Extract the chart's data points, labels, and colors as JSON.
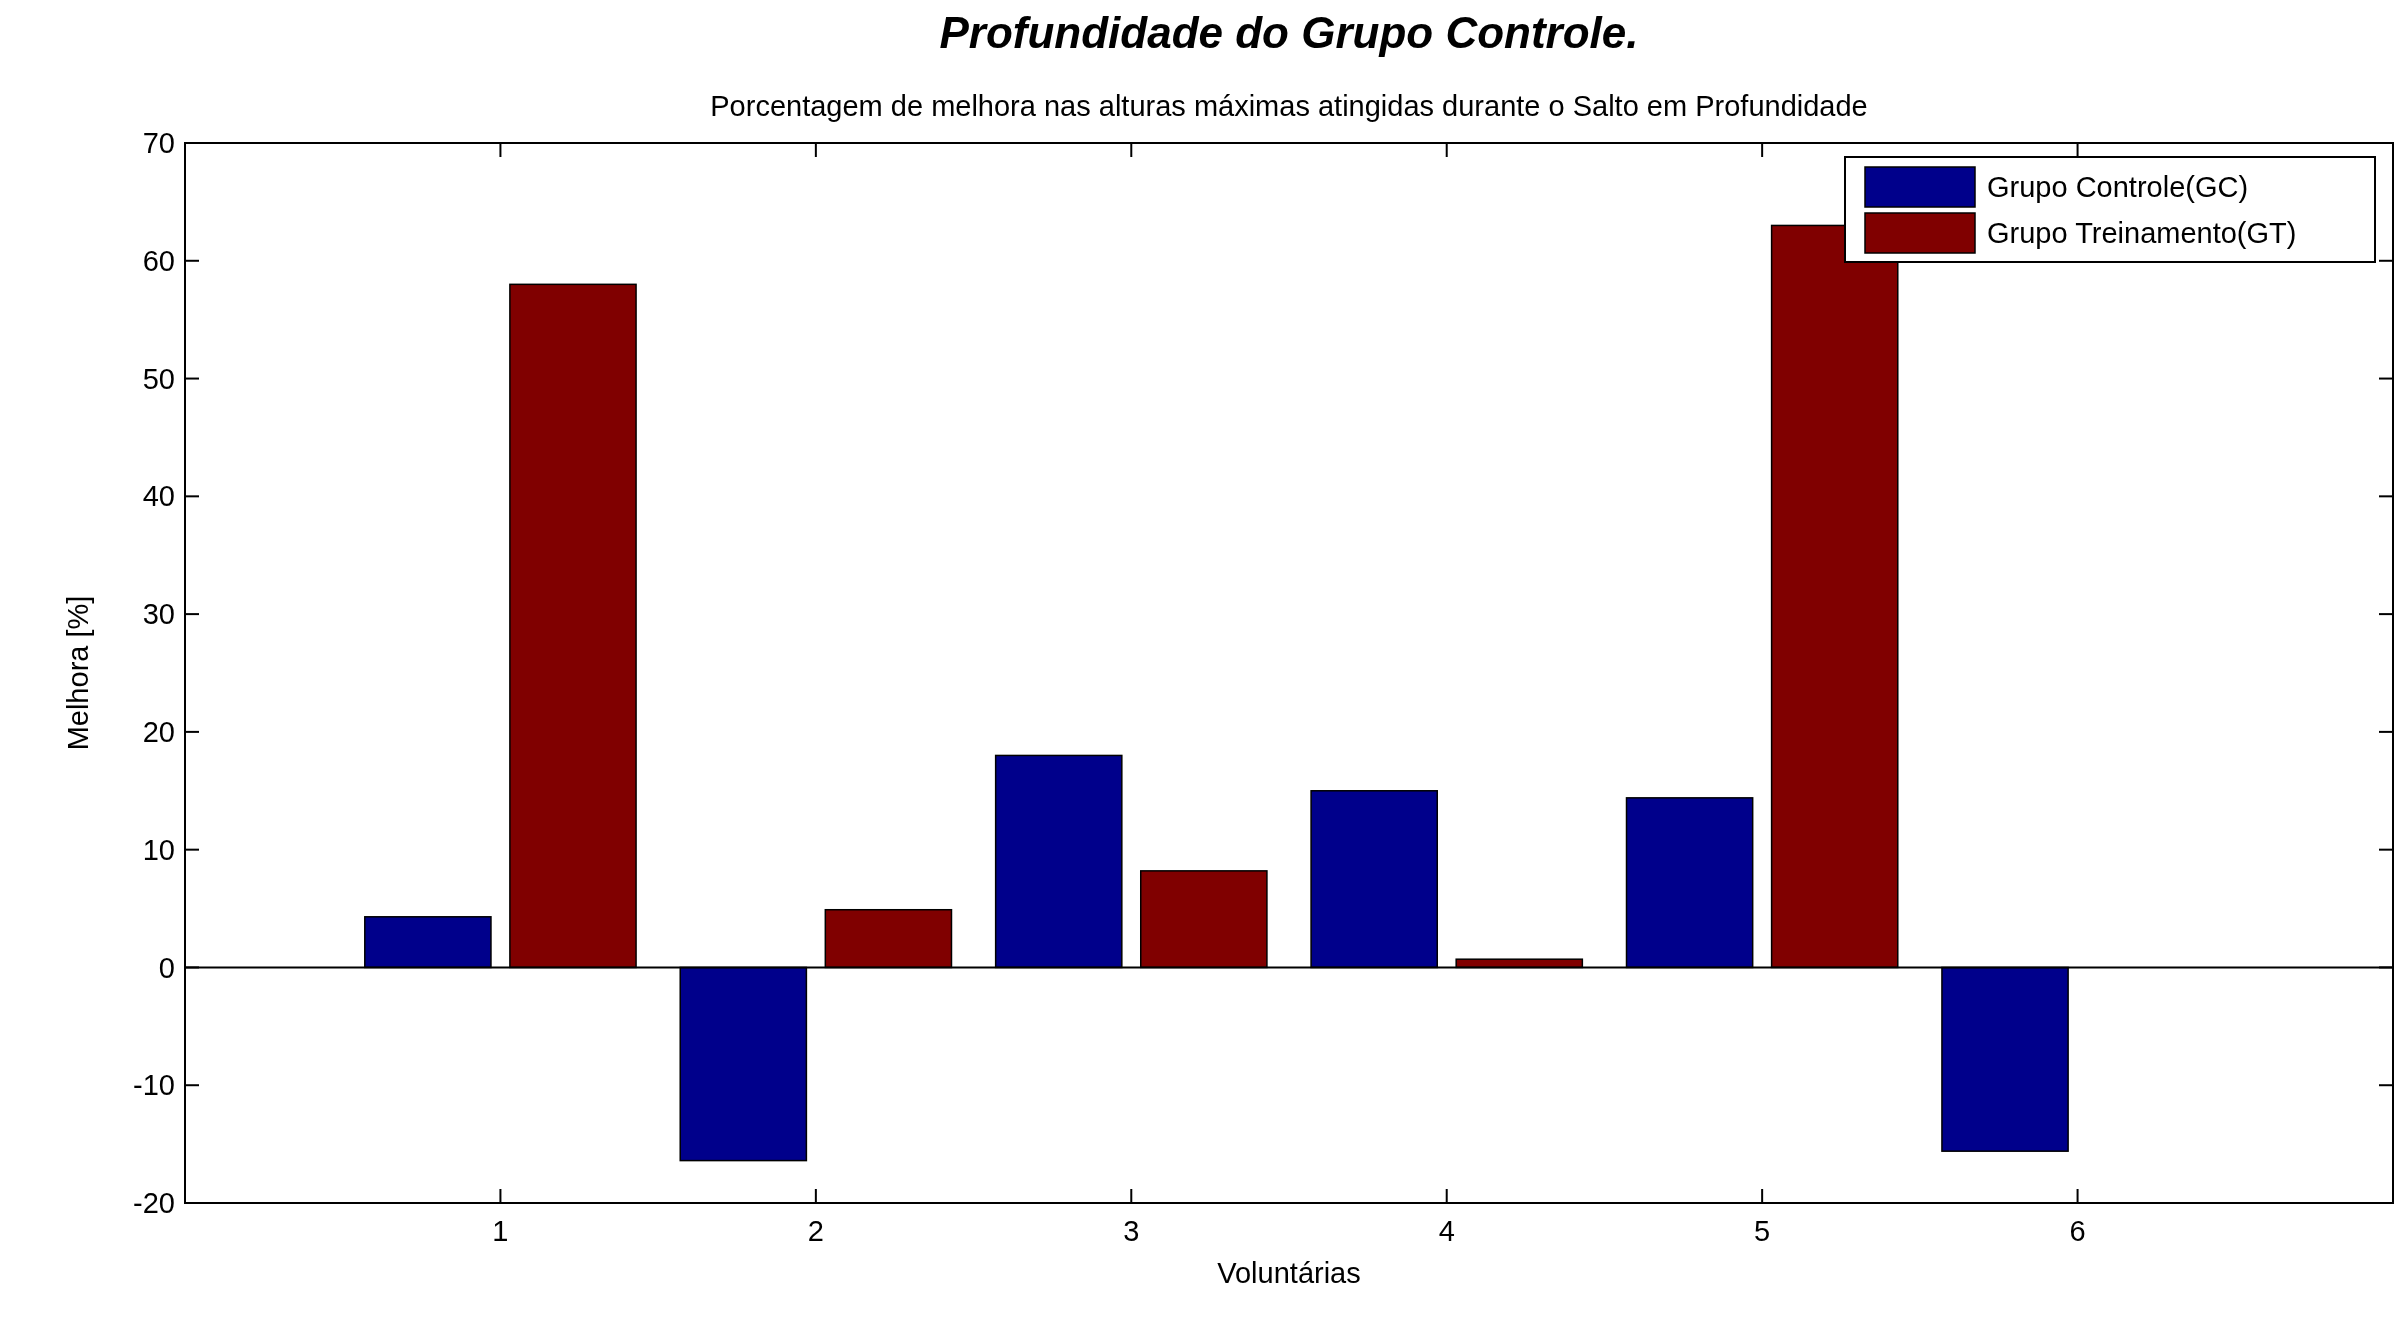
{
  "chart_data": {
    "type": "bar",
    "title": "Profundidade do Grupo Controle.",
    "subtitle": "Porcentagem de melhora nas alturas máximas atingidas durante o Salto em Profundidade",
    "xlabel": "Voluntárias",
    "ylabel": "Melhora [%]",
    "categories": [
      "1",
      "2",
      "3",
      "4",
      "5",
      "6"
    ],
    "series": [
      {
        "name": "Grupo Controle(GC)",
        "color": "#00008b",
        "values": [
          4.3,
          -16.4,
          18.0,
          15.0,
          14.4,
          -15.6
        ]
      },
      {
        "name": "Grupo Treinamento(GT)",
        "color": "#800000",
        "values": [
          58,
          4.9,
          8.2,
          0.7,
          63.0,
          null
        ]
      }
    ],
    "ylim": [
      -20,
      70
    ],
    "yticks": [
      -20,
      -10,
      0,
      10,
      20,
      30,
      40,
      50,
      60,
      70
    ],
    "legend": "top right"
  }
}
